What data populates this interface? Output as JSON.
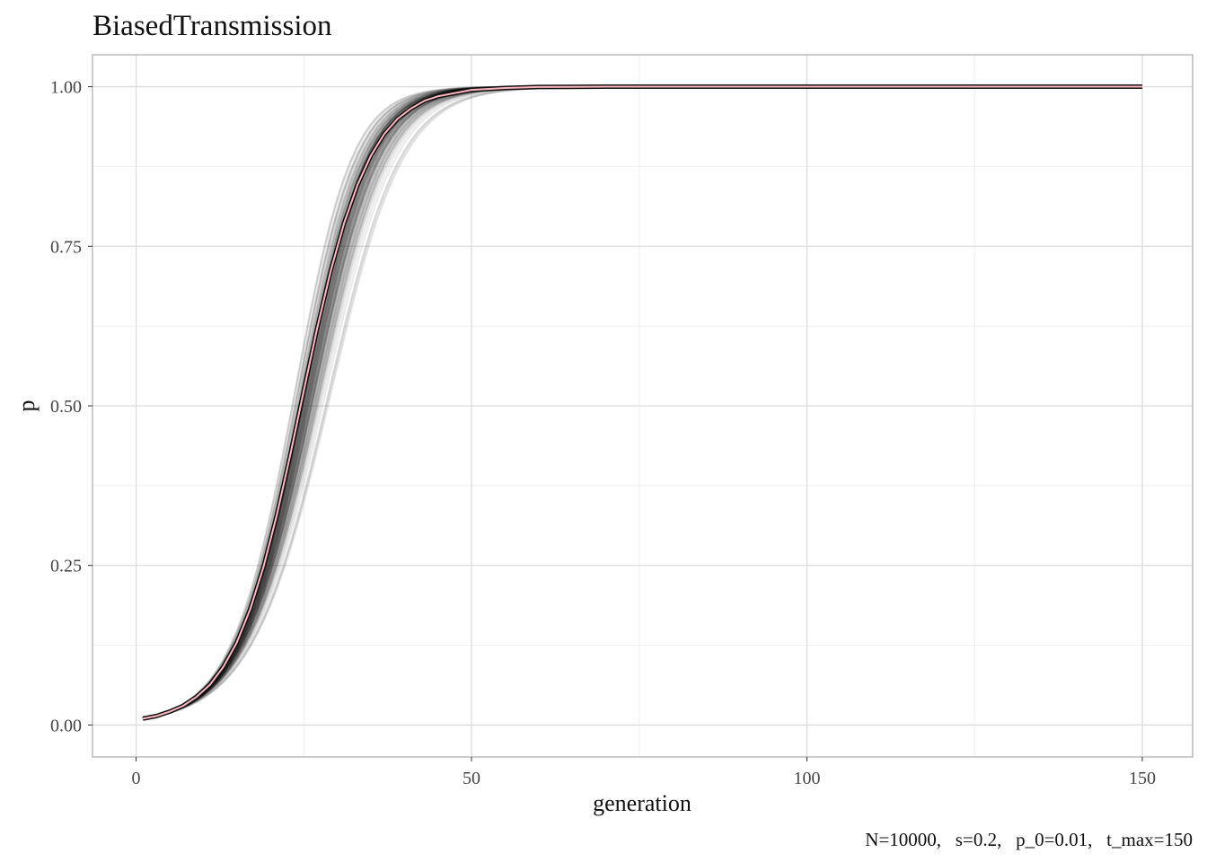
{
  "chart_data": {
    "type": "line",
    "title": "BiasedTransmission",
    "xlabel": "generation",
    "ylabel": "p",
    "caption": "N=10000,   s=0.2,   p_0=0.01,   t_max=150",
    "parameters": {
      "N": 10000,
      "s": 0.2,
      "p_0": 0.01,
      "t_max": 150
    },
    "xlim": [
      -6.5,
      157.5
    ],
    "ylim": [
      -0.05,
      1.05
    ],
    "x_ticks": [
      0,
      50,
      100,
      150
    ],
    "x_tick_labels": [
      "0",
      "50",
      "100",
      "150"
    ],
    "y_ticks": [
      0,
      0.25,
      0.5,
      0.75,
      1
    ],
    "y_tick_labels": [
      "0.00",
      "0.25",
      "0.50",
      "0.75",
      "1.00"
    ],
    "grid": true,
    "legend": "none",
    "x_range": [
      1,
      150
    ],
    "replicate_runs": {
      "count": 100,
      "color": "#000000",
      "opacity": 0.08,
      "description": "individual simulation runs, each rising from p=0.01 to p=1.00"
    },
    "series": [
      {
        "color": "#ffb6c1",
        "x": [
          1,
          3,
          5,
          7,
          9,
          11,
          13,
          15,
          17,
          19,
          21,
          23,
          25,
          27,
          29,
          31,
          33,
          35,
          37,
          39,
          41,
          43,
          45,
          50,
          55,
          60,
          70,
          80,
          90,
          100,
          110,
          120,
          130,
          140,
          150
        ],
        "y": [
          0.01,
          0.014,
          0.021,
          0.03,
          0.044,
          0.063,
          0.091,
          0.129,
          0.181,
          0.248,
          0.33,
          0.424,
          0.524,
          0.622,
          0.711,
          0.786,
          0.846,
          0.892,
          0.926,
          0.95,
          0.966,
          0.978,
          0.985,
          0.995,
          0.998,
          0.9995,
          1.0,
          1.0,
          1.0,
          1.0,
          1.0,
          1.0,
          1.0,
          1.0,
          1.0
        ]
      }
    ]
  },
  "colors": {
    "panel_border": "#b0b0b0",
    "grid_major": "#dcdcdc",
    "grid_minor": "#efefef",
    "runs": "#000000",
    "mean_line": "#ffb6c1"
  }
}
